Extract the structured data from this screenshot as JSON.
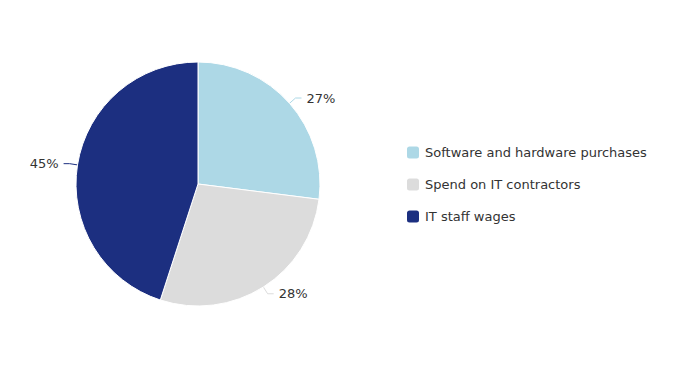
{
  "chart_data": {
    "type": "pie",
    "categories": [
      "Software and hardware purchases",
      "Spend on IT contractors",
      "IT staff wages"
    ],
    "values": [
      27,
      28,
      45
    ],
    "value_labels": [
      "27%",
      "28%",
      "45%"
    ],
    "colors": [
      "#ADD8E6",
      "#DCDCDC",
      "#1C2F80"
    ],
    "data_labels": true,
    "legend": "right"
  }
}
